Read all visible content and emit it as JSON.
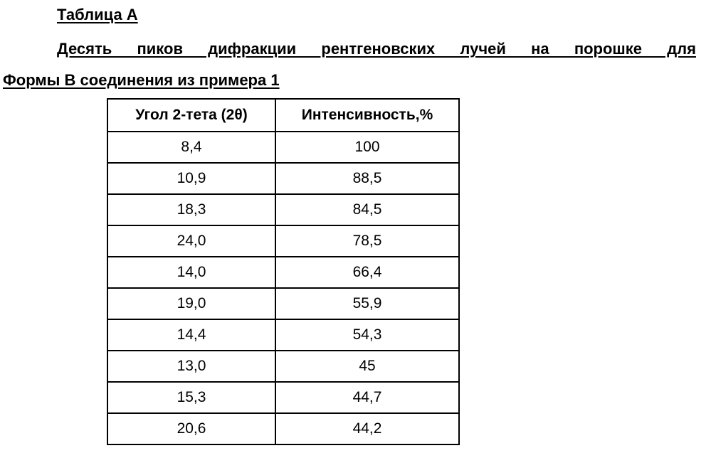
{
  "document": {
    "title": "Таблица А",
    "caption_line1": "Десять пиков дифракции рентгеновских лучей на порошке для",
    "caption_line2": "Формы В соединения из примера 1"
  },
  "table": {
    "headers": [
      "Угол 2-тета (2θ)",
      "Интенсивность,%"
    ],
    "rows": [
      [
        "8,4",
        "100"
      ],
      [
        "10,9",
        "88,5"
      ],
      [
        "18,3",
        "84,5"
      ],
      [
        "24,0",
        "78,5"
      ],
      [
        "14,0",
        "66,4"
      ],
      [
        "19,0",
        "55,9"
      ],
      [
        "14,4",
        "54,3"
      ],
      [
        "13,0",
        "45"
      ],
      [
        "15,3",
        "44,7"
      ],
      [
        "20,6",
        "44,2"
      ]
    ]
  }
}
